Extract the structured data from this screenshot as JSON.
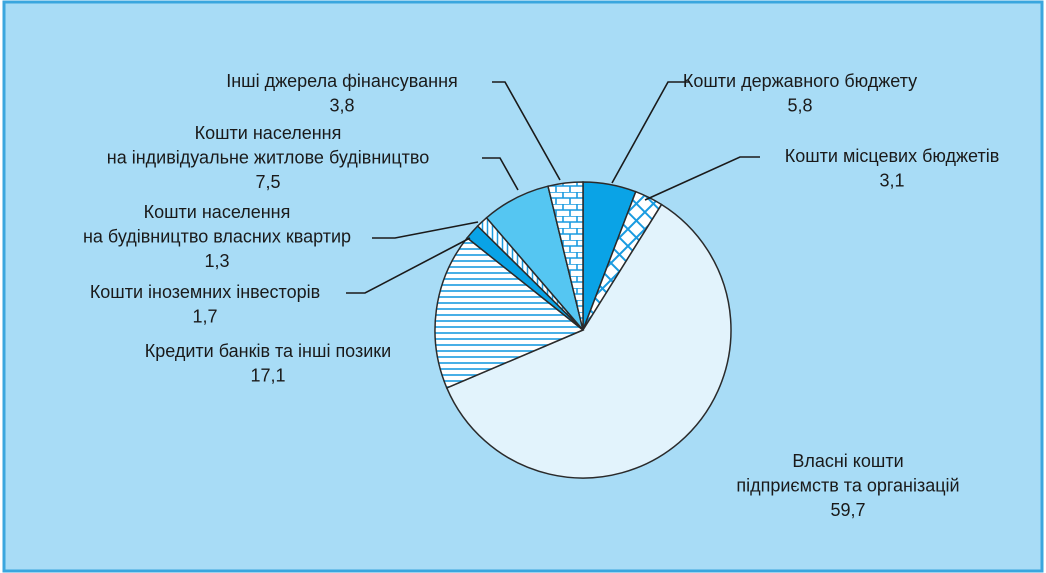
{
  "chart_data": {
    "type": "pie",
    "categories": [
      "Кошти державного бюджету",
      "Кошти місцевих бюджетів",
      "Власні кошти\nпідприємств та організацій",
      "Кредити банків та інші позики",
      "Кошти іноземних інвесторів",
      "Кошти населення\nна будівництво власних квартир",
      "Кошти населення\nна індивідуальне житлове будівництво",
      "Інші джерела фінансування"
    ],
    "values": [
      5.8,
      3.1,
      59.7,
      17.1,
      1.7,
      1.3,
      7.5,
      3.8
    ],
    "value_labels": [
      "5,8",
      "3,1",
      "59,7",
      "17,1",
      "1,7",
      "1,3",
      "7,5",
      "3,8"
    ],
    "colors": [
      "#0aa3e6",
      "#ffffff",
      "#e2f3fc",
      "#ffffff",
      "#0aa3e6",
      "#ffffff",
      "#55c6f2",
      "#ffffff"
    ],
    "hatch": [
      "solid",
      "cross",
      "solid",
      "horizontal",
      "solid",
      "vertical",
      "solid",
      "brick"
    ]
  }
}
